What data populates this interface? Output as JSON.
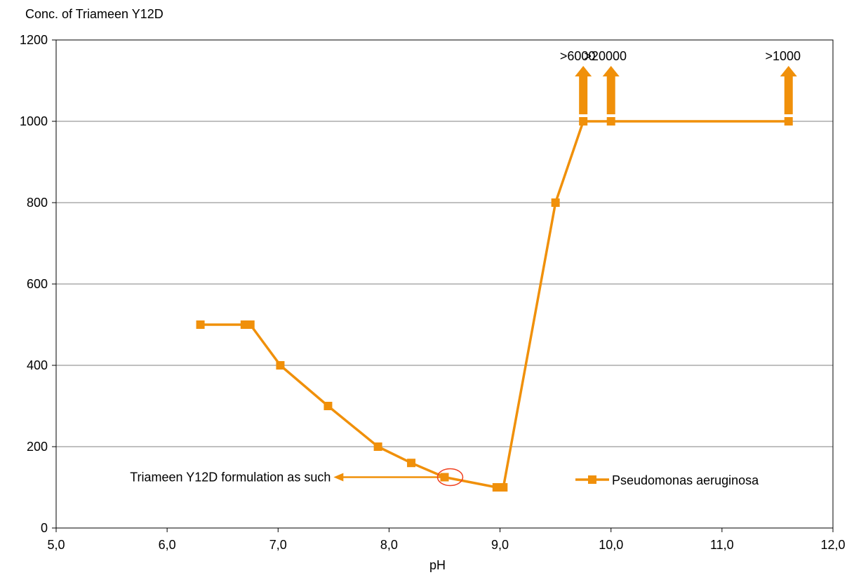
{
  "chart_data": {
    "type": "line",
    "title": "",
    "ylabel": "Conc. of Triameen Y12D",
    "xlabel": "pH",
    "xlim": [
      5.0,
      12.0
    ],
    "ylim": [
      0,
      1200
    ],
    "x_ticks": [
      "5,0",
      "6,0",
      "7,0",
      "8,0",
      "9,0",
      "10,0",
      "11,0",
      "12,0"
    ],
    "y_ticks": [
      "0",
      "200",
      "400",
      "600",
      "800",
      "1000",
      "1200"
    ],
    "grid": "horizontal",
    "legend_position": "bottom-right",
    "series": [
      {
        "name": "Pseudomonas aeruginosa",
        "color": "#f0900a",
        "marker": "square",
        "x": [
          6.3,
          6.7,
          6.75,
          7.02,
          7.45,
          7.9,
          8.2,
          8.5,
          8.97,
          9.03,
          9.5,
          9.75,
          10.0,
          11.6
        ],
        "y": [
          500,
          500,
          500,
          400,
          300,
          200,
          160,
          125,
          100,
          100,
          800,
          1000,
          1000,
          1000
        ]
      }
    ],
    "annotations": [
      {
        "text": ">6000",
        "x": 9.75,
        "y": 1000,
        "arrow": "up"
      },
      {
        "text": ">20000",
        "x": 10.0,
        "y": 1000,
        "arrow": "up"
      },
      {
        "text": ">1000",
        "x": 11.6,
        "y": 1000,
        "arrow": "up"
      },
      {
        "text": "Triameen Y12D formulation as such",
        "x": 8.5,
        "y": 125,
        "arrow": "left",
        "arrow_to_x": 7.5,
        "circled": true
      }
    ]
  }
}
